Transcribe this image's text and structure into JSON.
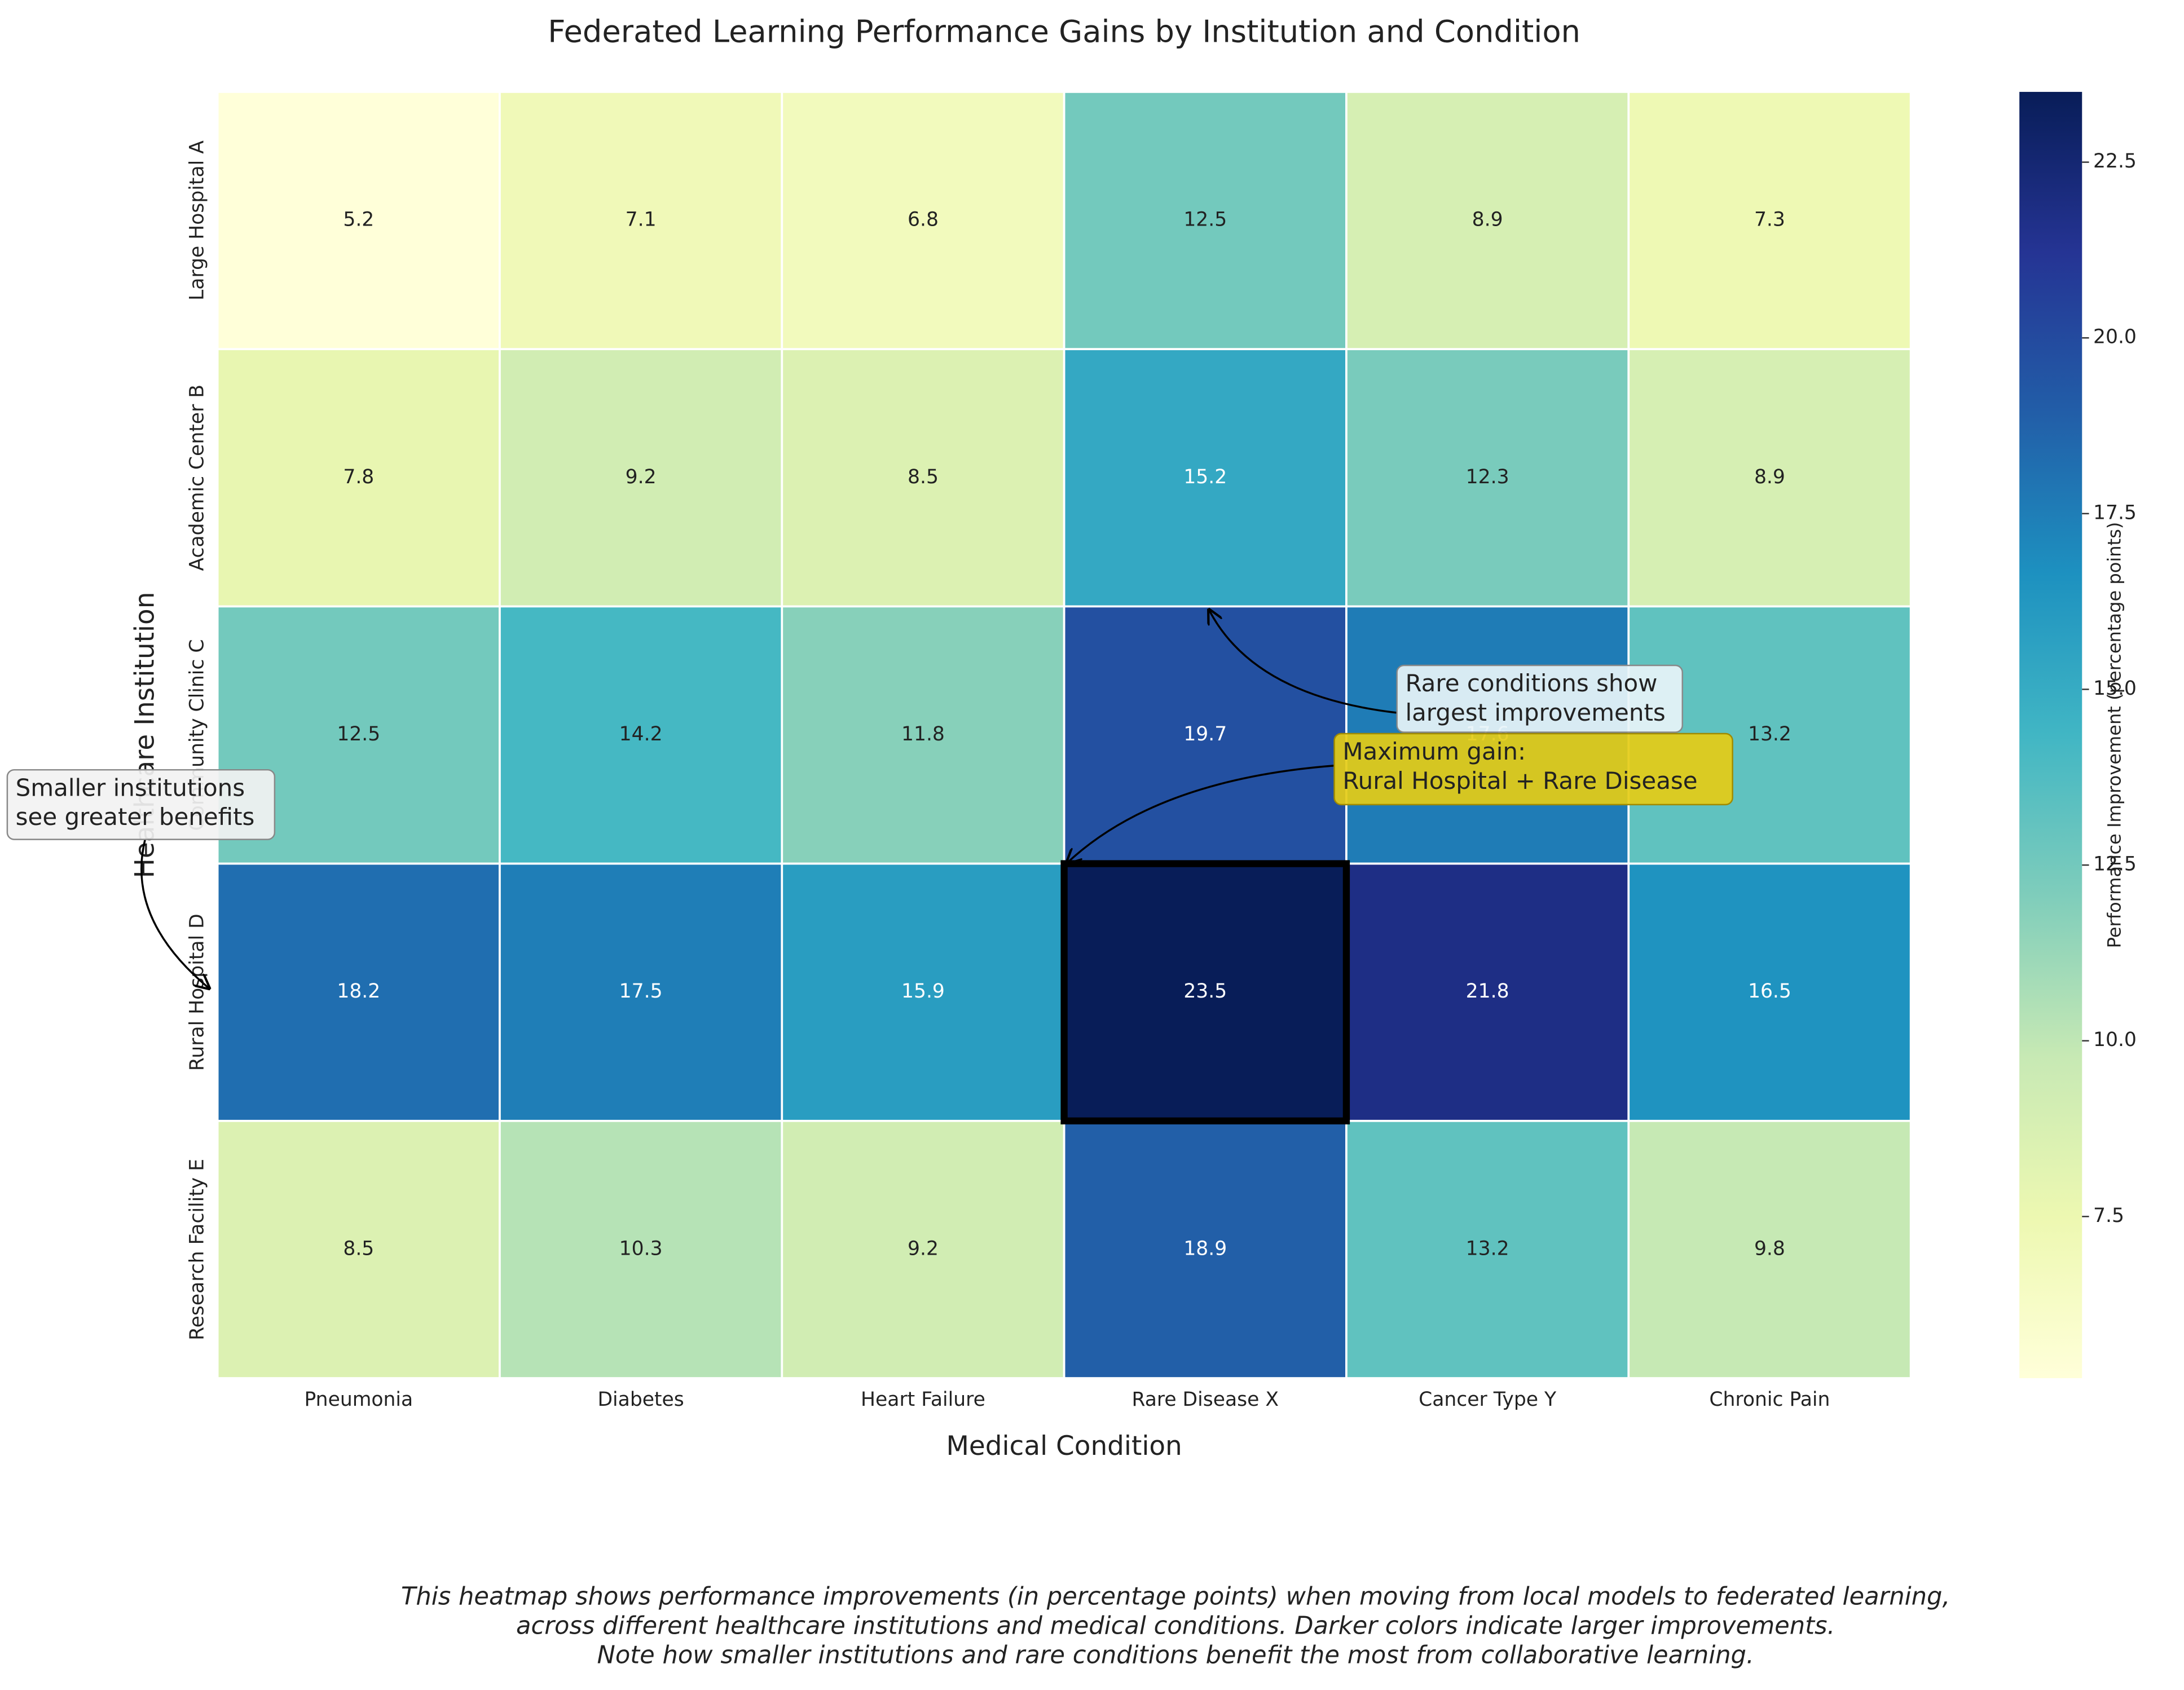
{
  "chart_data": {
    "type": "heatmap",
    "title": "Federated Learning Performance Gains by Institution and Condition",
    "x_label": "Medical Condition",
    "y_label": "Healthcare Institution",
    "x_categories": [
      "Pneumonia",
      "Diabetes",
      "Heart Failure",
      "Rare Disease X",
      "Cancer Type Y",
      "Chronic Pain"
    ],
    "y_categories": [
      "Large Hospital A",
      "Academic Center B",
      "Community Clinic C",
      "Rural Hospital D",
      "Research Facility E"
    ],
    "values": [
      [
        5.2,
        7.1,
        6.8,
        12.5,
        8.9,
        7.3
      ],
      [
        7.8,
        9.2,
        8.5,
        15.2,
        12.3,
        8.9
      ],
      [
        12.5,
        14.2,
        11.8,
        19.7,
        17.6,
        13.2
      ],
      [
        18.2,
        17.5,
        15.9,
        23.5,
        21.8,
        16.5
      ],
      [
        8.5,
        10.3,
        9.2,
        18.9,
        13.2,
        9.8
      ]
    ],
    "colormap": "YlGnBu",
    "colorbar_label": "Performance Improvement (percentage points)",
    "clim": [
      5.2,
      23.5
    ],
    "cticks": [
      7.5,
      10.0,
      12.5,
      15.0,
      17.5,
      20.0,
      22.5
    ],
    "highlight": {
      "row": 3,
      "col": 3
    },
    "annotations": [
      {
        "lines": [
          "Rare conditions show",
          "largest improvements"
        ]
      },
      {
        "lines": [
          "Maximum gain:",
          "Rural Hospital + Rare Disease"
        ]
      },
      {
        "lines": [
          "Smaller institutions",
          "see greater benefits"
        ]
      }
    ],
    "caption": [
      "This heatmap shows performance improvements (in percentage points) when moving from local models to federated learning,",
      "across different healthcare institutions and medical conditions. Darker colors indicate larger improvements.",
      "Note how smaller institutions and rare conditions benefit the most from collaborative learning."
    ]
  }
}
